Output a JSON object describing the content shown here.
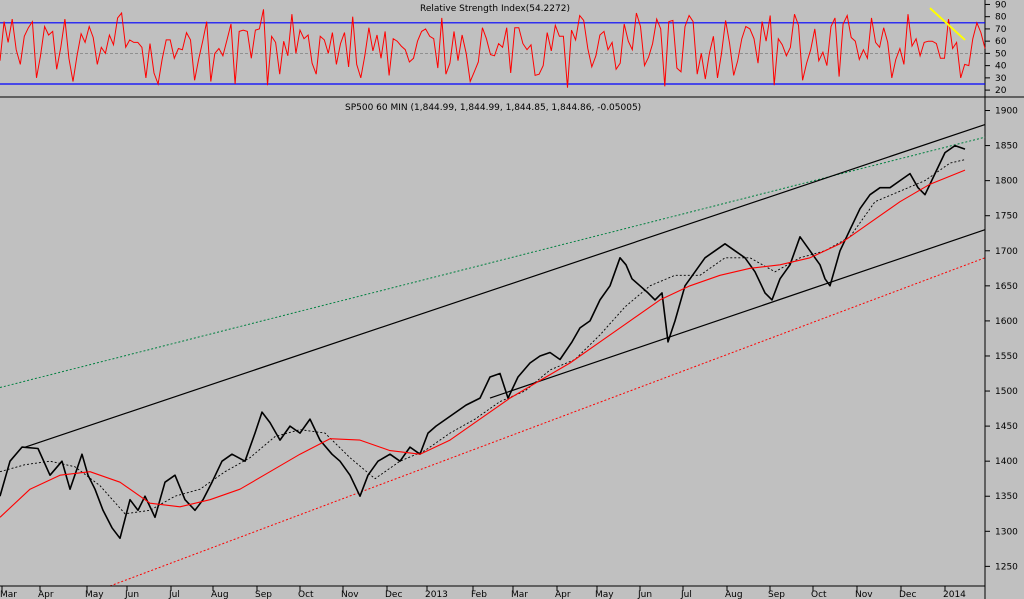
{
  "chart_data": [
    {
      "type": "line",
      "title": "Relative Strength Index(54.2272)",
      "y_ticks": [
        90,
        80,
        70,
        60,
        50,
        40,
        30,
        20
      ],
      "ylim": [
        16,
        92
      ],
      "reference_lines": [
        25,
        50,
        75
      ],
      "grid": false,
      "colors": {
        "series": "#ff0000",
        "bands": "#0000ff",
        "midline": "#808080",
        "trendline": "#ffff00"
      },
      "series": [
        {
          "values": [
            44,
            76,
            59,
            78,
            53,
            41,
            64,
            71,
            76,
            30,
            48,
            72,
            65,
            68,
            37,
            55,
            78,
            46,
            27,
            48,
            66,
            59,
            72,
            63,
            41,
            55,
            50,
            65,
            57,
            79,
            83,
            55,
            61,
            59,
            59,
            55,
            30,
            58,
            34,
            25,
            45,
            61,
            61,
            46,
            54,
            53,
            67,
            61,
            28,
            45,
            60,
            76,
            27,
            50,
            54,
            48,
            61,
            74,
            25,
            68,
            69,
            68,
            46,
            69,
            70,
            86,
            24,
            64,
            59,
            33,
            60,
            48,
            82,
            50,
            69,
            62,
            65,
            42,
            33,
            64,
            61,
            50,
            67,
            41,
            58,
            67,
            39,
            80,
            41,
            30,
            48,
            71,
            52,
            65,
            46,
            68,
            32,
            62,
            60,
            56,
            53,
            43,
            46,
            60,
            68,
            70,
            64,
            62,
            38,
            79,
            33,
            42,
            68,
            44,
            65,
            50,
            27,
            35,
            43,
            71,
            62,
            49,
            48,
            58,
            55,
            71,
            34,
            71,
            71,
            58,
            53,
            57,
            32,
            33,
            40,
            67,
            52,
            73,
            64,
            64,
            22,
            69,
            61,
            81,
            77,
            54,
            39,
            48,
            65,
            68,
            53,
            59,
            37,
            42,
            74,
            60,
            53,
            83,
            72,
            40,
            47,
            58,
            78,
            70,
            23,
            76,
            77,
            38,
            35,
            72,
            81,
            76,
            33,
            50,
            29,
            50,
            64,
            30,
            50,
            77,
            58,
            32,
            44,
            62,
            72,
            70,
            62,
            42,
            76,
            60,
            81,
            24,
            62,
            57,
            48,
            55,
            82,
            73,
            28,
            42,
            53,
            70,
            44,
            51,
            40,
            72,
            79,
            31,
            74,
            81,
            63,
            60,
            45,
            53,
            46,
            79,
            59,
            55,
            71,
            59,
            30,
            45,
            54,
            41,
            82,
            56,
            62,
            48,
            59,
            60,
            60,
            58,
            46,
            46,
            78,
            54,
            59,
            30,
            41,
            40,
            62,
            75,
            67,
            54
          ]
        }
      ],
      "trendline": {
        "from": [
          930,
          87
        ],
        "to": [
          965,
          61
        ]
      }
    },
    {
      "type": "line",
      "title": "SP500 60 MIN (1,844.99, 1,844.99, 1,844.85, 1,844.86, -0.05005)",
      "x_tick_labels": [
        "Mar",
        "Apr",
        "May",
        "Jun",
        "Jul",
        "Aug",
        "Sep",
        "Oct",
        "Nov",
        "Dec",
        "2013",
        "Feb",
        "Mar",
        "Apr",
        "May",
        "Jun",
        "Jul",
        "Aug",
        "Sep",
        "Oct",
        "Nov",
        "Dec",
        "2014"
      ],
      "y_ticks": [
        1900,
        1850,
        1800,
        1750,
        1700,
        1650,
        1600,
        1550,
        1500,
        1450,
        1400,
        1350,
        1300,
        1250
      ],
      "ylim": [
        1222,
        1915
      ],
      "xlim": [
        0,
        985
      ],
      "grid": false,
      "colors": {
        "price": "#000000",
        "fast_ma": "#000000",
        "slow_ma": "#ff0000",
        "channel": "#000000",
        "upper_dotted": "#008040",
        "lower_dotted": "#ff0000"
      },
      "series": [
        {
          "name": "",
          "role": "price",
          "x": [
            0,
            10,
            22,
            38,
            50,
            62,
            70,
            82,
            88,
            95,
            103,
            112,
            120,
            130,
            138,
            145,
            155,
            165,
            175,
            185,
            195,
            203,
            212,
            222,
            232,
            245,
            255,
            262,
            270,
            280,
            290,
            300,
            310,
            320,
            332,
            340,
            350,
            360,
            368,
            378,
            390,
            400,
            410,
            420,
            428,
            436,
            446,
            456,
            466,
            480,
            490,
            500,
            508,
            518,
            530,
            540,
            550,
            560,
            572,
            580,
            590,
            600,
            610,
            620,
            626,
            632,
            640,
            648,
            655,
            662,
            668,
            675,
            685,
            695,
            705,
            715,
            725,
            735,
            745,
            755,
            765,
            772,
            780,
            790,
            800,
            810,
            820,
            825,
            830,
            840,
            850,
            860,
            870,
            880,
            890,
            900,
            910,
            918,
            925,
            935,
            945,
            955,
            965
          ],
          "y": [
            1350,
            1400,
            1420,
            1418,
            1380,
            1400,
            1360,
            1410,
            1380,
            1360,
            1330,
            1305,
            1290,
            1345,
            1330,
            1350,
            1320,
            1370,
            1380,
            1345,
            1330,
            1345,
            1370,
            1400,
            1410,
            1400,
            1440,
            1470,
            1455,
            1430,
            1450,
            1440,
            1460,
            1430,
            1410,
            1400,
            1380,
            1350,
            1380,
            1400,
            1410,
            1400,
            1420,
            1410,
            1440,
            1450,
            1460,
            1470,
            1480,
            1490,
            1520,
            1525,
            1490,
            1520,
            1540,
            1550,
            1555,
            1545,
            1570,
            1590,
            1600,
            1630,
            1650,
            1690,
            1680,
            1660,
            1650,
            1640,
            1630,
            1640,
            1570,
            1600,
            1650,
            1670,
            1690,
            1700,
            1710,
            1700,
            1690,
            1670,
            1640,
            1630,
            1660,
            1680,
            1720,
            1700,
            1680,
            1660,
            1650,
            1700,
            1730,
            1760,
            1780,
            1790,
            1790,
            1800,
            1810,
            1790,
            1780,
            1810,
            1840,
            1850,
            1845
          ]
        },
        {
          "name": "",
          "role": "fast_ma",
          "x": [
            0,
            25,
            50,
            75,
            100,
            125,
            150,
            175,
            200,
            225,
            250,
            275,
            300,
            325,
            350,
            375,
            400,
            425,
            450,
            475,
            500,
            525,
            550,
            575,
            600,
            625,
            650,
            675,
            700,
            725,
            750,
            775,
            800,
            825,
            850,
            875,
            900,
            925,
            950,
            965
          ],
          "y": [
            1385,
            1395,
            1400,
            1392,
            1365,
            1325,
            1330,
            1350,
            1360,
            1385,
            1405,
            1435,
            1445,
            1440,
            1405,
            1375,
            1400,
            1415,
            1440,
            1460,
            1485,
            1500,
            1530,
            1545,
            1580,
            1620,
            1650,
            1665,
            1665,
            1690,
            1690,
            1670,
            1690,
            1700,
            1720,
            1770,
            1785,
            1800,
            1825,
            1830
          ]
        },
        {
          "name": "",
          "role": "slow_ma",
          "x": [
            0,
            30,
            60,
            90,
            120,
            150,
            180,
            210,
            240,
            270,
            300,
            330,
            360,
            390,
            420,
            450,
            480,
            510,
            540,
            570,
            600,
            630,
            660,
            690,
            720,
            750,
            780,
            810,
            840,
            870,
            900,
            930,
            965
          ],
          "y": [
            1320,
            1360,
            1380,
            1385,
            1370,
            1340,
            1335,
            1345,
            1360,
            1385,
            1410,
            1432,
            1430,
            1415,
            1410,
            1430,
            1460,
            1490,
            1515,
            1540,
            1570,
            1600,
            1630,
            1650,
            1665,
            1675,
            1680,
            1690,
            1710,
            1740,
            1770,
            1795,
            1815
          ]
        }
      ],
      "channel_upper": {
        "from": [
          25,
          1420
        ],
        "to": [
          985,
          1880
        ]
      },
      "channel_lower": {
        "from": [
          490,
          1490
        ],
        "to": [
          985,
          1730
        ]
      },
      "upper_dotted_line": {
        "from": [
          0,
          1505
        ],
        "to": [
          985,
          1862
        ]
      },
      "lower_dotted_line": {
        "from": [
          110,
          1222
        ],
        "to": [
          985,
          1690
        ]
      },
      "x_tick_positions": [
        7,
        45,
        92,
        132,
        176,
        218,
        262,
        305,
        348,
        392,
        432,
        478,
        518,
        562,
        602,
        645,
        688,
        732,
        775,
        818,
        862,
        906,
        950
      ]
    }
  ]
}
